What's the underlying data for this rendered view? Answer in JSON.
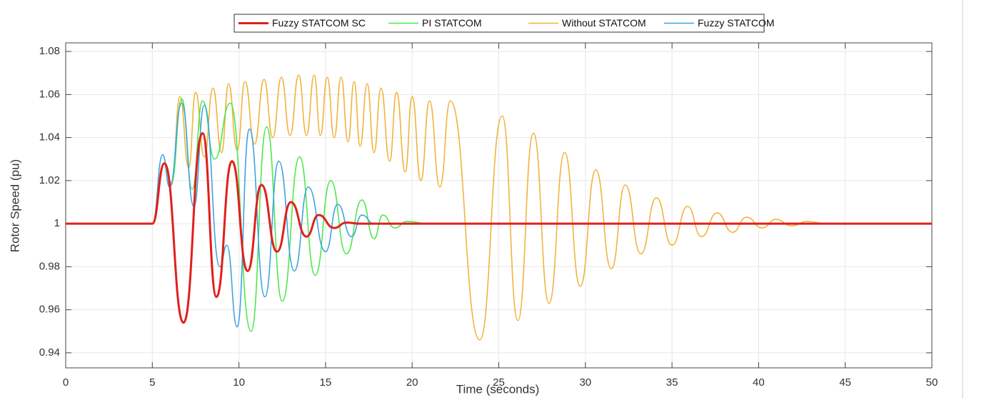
{
  "chart_data": {
    "type": "line",
    "xlabel": "Time (seconds)",
    "ylabel": "Rotor Speed (pu)",
    "xlim": [
      0,
      50
    ],
    "ylim": [
      0.933,
      1.084
    ],
    "xticks": [
      0,
      5,
      10,
      15,
      20,
      25,
      30,
      35,
      40,
      45,
      50
    ],
    "yticks": [
      0.94,
      0.96,
      0.98,
      1,
      1.02,
      1.04,
      1.06,
      1.08
    ],
    "grid": true,
    "legend": "top",
    "series": [
      {
        "name": "Fuzzy STATCOM SC",
        "color": "#e0201b",
        "x": [
          0,
          5,
          5.7,
          6.8,
          7.9,
          8.7,
          9.6,
          10.5,
          11.3,
          12.2,
          13.0,
          13.9,
          14.6,
          15.5,
          16.2,
          17,
          50
        ],
        "values": [
          1,
          1,
          1.028,
          0.954,
          1.042,
          0.966,
          1.029,
          0.978,
          1.018,
          0.987,
          1.01,
          0.994,
          1.004,
          0.998,
          1.0005,
          1,
          1
        ]
      },
      {
        "name": "PI STATCOM",
        "color": "#4de84d",
        "x": [
          0,
          5,
          5.7,
          6.1,
          6.7,
          7.3,
          7.9,
          8.6,
          9.5,
          10.7,
          11.6,
          12.5,
          13.5,
          14.4,
          15.3,
          16.2,
          17.1,
          17.8,
          18.3,
          19,
          19.7,
          21,
          50
        ],
        "values": [
          1,
          1,
          1.028,
          1.019,
          1.058,
          1.016,
          1.057,
          1.03,
          1.056,
          0.95,
          1.045,
          0.964,
          1.031,
          0.976,
          1.02,
          0.986,
          1.011,
          0.993,
          1.004,
          0.998,
          1.001,
          1,
          1
        ]
      },
      {
        "name": "Without STATCOM",
        "color": "#f0b43c",
        "x": [
          0,
          5,
          5.7,
          6.1,
          6.6,
          7.1,
          7.5,
          8.0,
          8.5,
          9.0,
          9.4,
          9.9,
          10.35,
          10.9,
          11.45,
          11.95,
          12.45,
          12.95,
          13.45,
          13.9,
          14.35,
          14.7,
          15.1,
          15.5,
          15.9,
          16.3,
          16.65,
          17.0,
          17.4,
          17.8,
          18.2,
          18.7,
          19.1,
          19.6,
          20.0,
          20.5,
          21.0,
          21.6,
          22.2,
          23.9,
          25.2,
          26.1,
          27.0,
          27.9,
          28.8,
          29.7,
          30.6,
          31.5,
          32.3,
          33.2,
          34.1,
          35.0,
          35.9,
          36.7,
          37.6,
          38.5,
          39.3,
          40.2,
          41.0,
          41.9,
          42.8,
          44,
          50
        ],
        "values": [
          1,
          1,
          1.028,
          1.018,
          1.059,
          1.026,
          1.061,
          1.031,
          1.063,
          1.033,
          1.065,
          1.034,
          1.066,
          1.037,
          1.067,
          1.04,
          1.068,
          1.041,
          1.069,
          1.041,
          1.069,
          1.041,
          1.068,
          1.04,
          1.068,
          1.038,
          1.066,
          1.036,
          1.065,
          1.033,
          1.063,
          1.029,
          1.061,
          1.024,
          1.059,
          1.02,
          1.057,
          1.017,
          1.057,
          0.946,
          1.05,
          0.955,
          1.042,
          0.963,
          1.033,
          0.971,
          1.025,
          0.979,
          1.018,
          0.986,
          1.012,
          0.99,
          1.008,
          0.994,
          1.005,
          0.996,
          1.003,
          0.998,
          1.002,
          0.999,
          1.001,
          1,
          1
        ]
      },
      {
        "name": "Fuzzy STATCOM",
        "color": "#3fa3e0",
        "x": [
          0,
          5,
          5.6,
          6.0,
          6.7,
          7.4,
          8.0,
          8.9,
          9.3,
          9.9,
          10.6,
          11.5,
          12.3,
          13.2,
          14.0,
          15.0,
          15.7,
          16.5,
          17.1,
          17.8,
          50
        ],
        "values": [
          1,
          1,
          1.032,
          1.017,
          1.056,
          1.008,
          1.055,
          0.98,
          0.99,
          0.952,
          1.044,
          0.966,
          1.029,
          0.978,
          1.017,
          0.987,
          1.009,
          0.994,
          1.004,
          1,
          1
        ]
      }
    ]
  }
}
